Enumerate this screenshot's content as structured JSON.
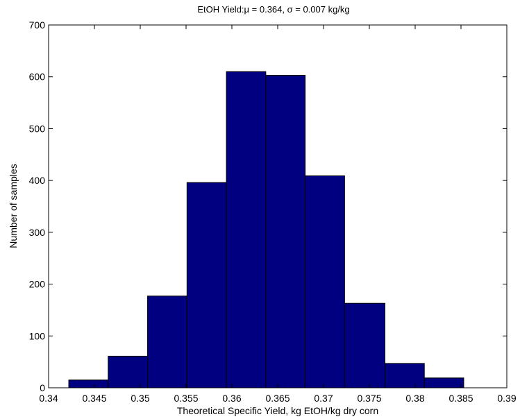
{
  "chart_data": {
    "type": "bar",
    "title": "EtOH Yield:μ = 0.364, σ = 0.007 kg/kg",
    "xlabel": "Theoretical Specific Yield, kg EtOH/kg dry corn",
    "ylabel": "Number of samples",
    "xlim": [
      0.34,
      0.39
    ],
    "ylim": [
      0,
      700
    ],
    "grid": false,
    "legend": "none",
    "bar_color": "#000080",
    "x_ticks": [
      0.34,
      0.345,
      0.35,
      0.355,
      0.36,
      0.365,
      0.37,
      0.375,
      0.38,
      0.385,
      0.39
    ],
    "x_tick_labels": [
      "0.34",
      "0.345",
      "0.35",
      "0.355",
      "0.36",
      "0.365",
      "0.37",
      "0.375",
      "0.38",
      "0.385",
      "0.39"
    ],
    "y_ticks": [
      0,
      100,
      200,
      300,
      400,
      500,
      600,
      700
    ],
    "y_tick_labels": [
      "0",
      "100",
      "200",
      "300",
      "400",
      "500",
      "600",
      "700"
    ],
    "bins": [
      {
        "x0": 0.3422,
        "x1": 0.3465,
        "value": 15
      },
      {
        "x0": 0.3465,
        "x1": 0.3508,
        "value": 61
      },
      {
        "x0": 0.3508,
        "x1": 0.3551,
        "value": 177
      },
      {
        "x0": 0.3551,
        "x1": 0.3594,
        "value": 396
      },
      {
        "x0": 0.3594,
        "x1": 0.3637,
        "value": 610
      },
      {
        "x0": 0.3637,
        "x1": 0.368,
        "value": 603
      },
      {
        "x0": 0.368,
        "x1": 0.3723,
        "value": 409
      },
      {
        "x0": 0.3723,
        "x1": 0.3767,
        "value": 163
      },
      {
        "x0": 0.3767,
        "x1": 0.381,
        "value": 47
      },
      {
        "x0": 0.381,
        "x1": 0.3853,
        "value": 19
      }
    ]
  }
}
